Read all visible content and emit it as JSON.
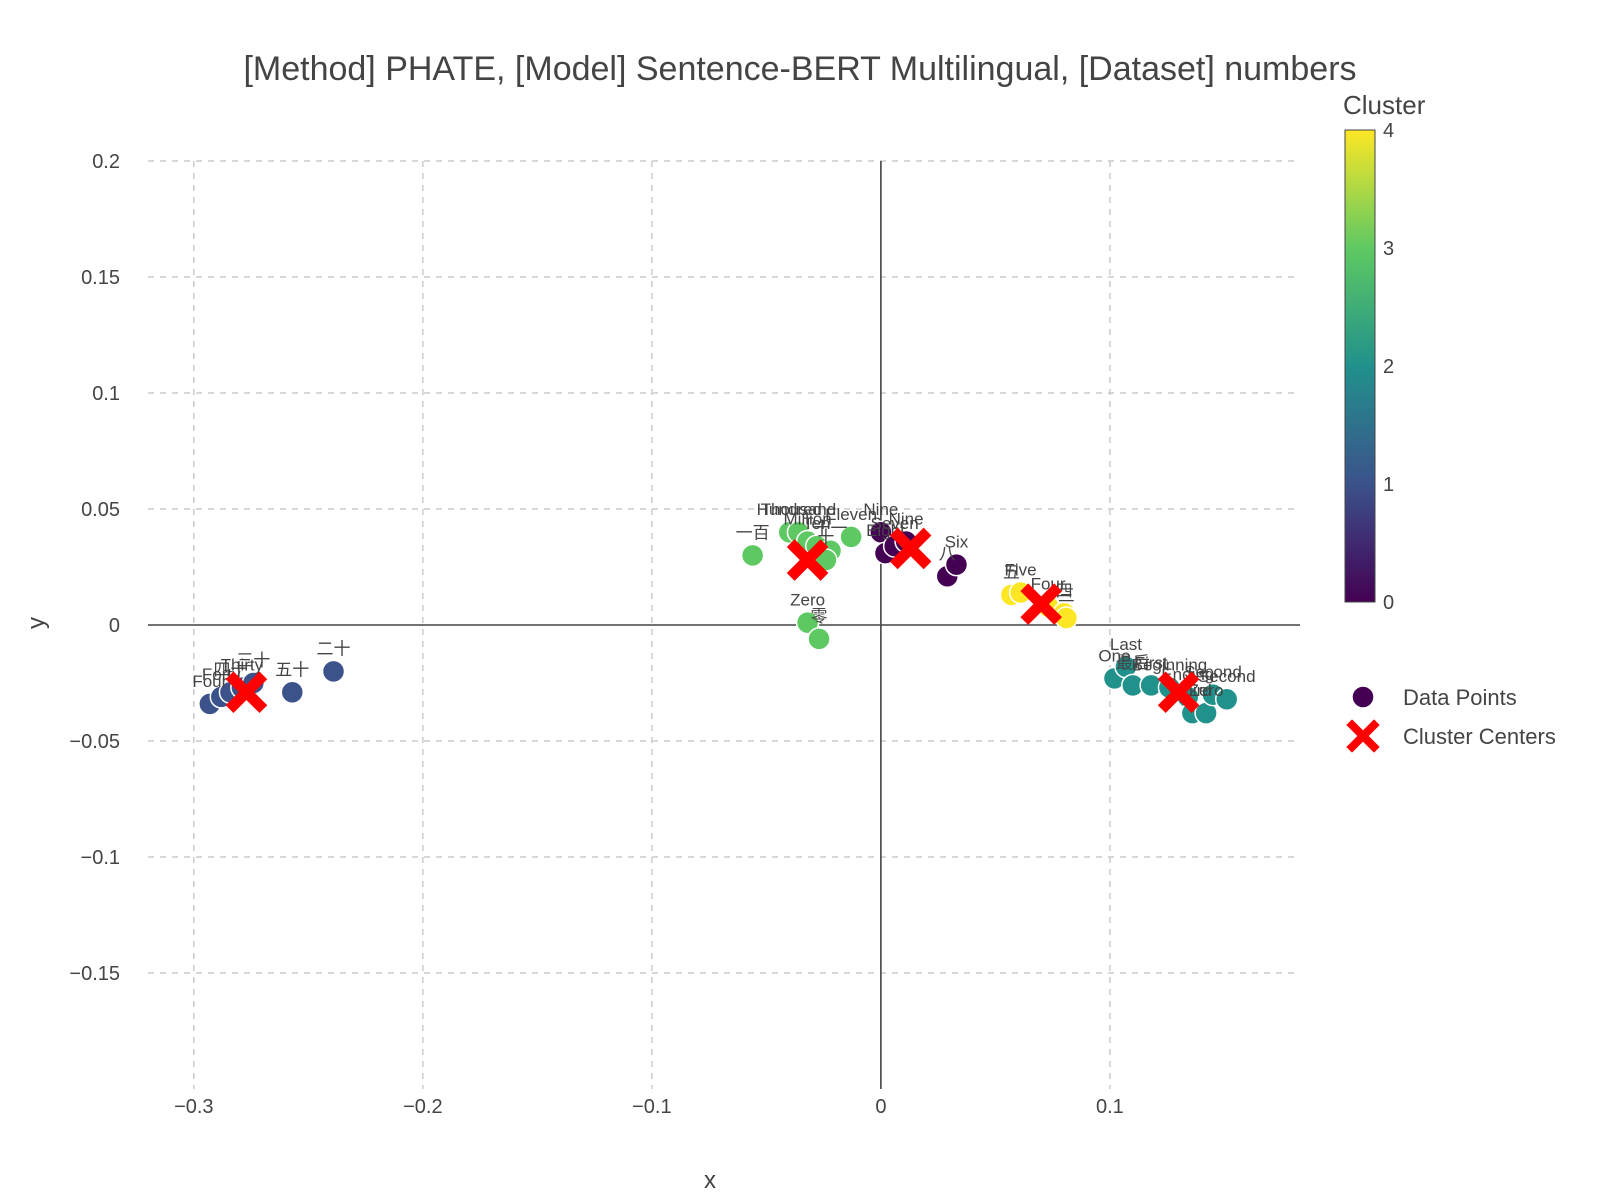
{
  "chart_data": {
    "type": "scatter",
    "title": "[Method] PHATE, [Model] Sentence-BERT Multilingual, [Dataset] numbers",
    "xlabel": "x",
    "ylabel": "y",
    "xlim": [
      -0.32,
      0.183
    ],
    "ylim": [
      -0.2,
      0.2
    ],
    "xticks": [
      -0.3,
      -0.2,
      -0.1,
      0,
      0.1
    ],
    "xtick_labels": [
      "−0.3",
      "−0.2",
      "−0.1",
      "0",
      "0.1"
    ],
    "yticks": [
      -0.15,
      -0.1,
      -0.05,
      0,
      0.05,
      0.1,
      0.15,
      0.2
    ],
    "ytick_labels": [
      "−0.15",
      "−0.1",
      "−0.05",
      "0",
      "0.05",
      "0.1",
      "0.15",
      "0.2"
    ],
    "grid": true,
    "legend": {
      "placement": "right",
      "items": [
        "Data Points",
        "Cluster Centers"
      ]
    },
    "colorbar": {
      "title": "Cluster",
      "min": 0,
      "max": 4,
      "ticks": [
        "0",
        "1",
        "2",
        "3",
        "4"
      ],
      "colorscale": "viridis"
    },
    "series": [
      {
        "name": "Data Points",
        "points": [
          {
            "x": -0.293,
            "y": -0.034,
            "cluster": 1,
            "label": "Four"
          },
          {
            "x": -0.288,
            "y": -0.031,
            "cluster": 1,
            "label": "Forty"
          },
          {
            "x": -0.284,
            "y": -0.029,
            "cluster": 1,
            "label": "四十"
          },
          {
            "x": -0.279,
            "y": -0.027,
            "cluster": 1,
            "label": "Thirty"
          },
          {
            "x": -0.274,
            "y": -0.025,
            "cluster": 1,
            "label": "三十"
          },
          {
            "x": -0.257,
            "y": -0.029,
            "cluster": 1,
            "label": "五十"
          },
          {
            "x": -0.239,
            "y": -0.02,
            "cluster": 1,
            "label": "二十"
          },
          {
            "x": -0.056,
            "y": 0.03,
            "cluster": 3,
            "label": "一百"
          },
          {
            "x": -0.04,
            "y": 0.04,
            "cluster": 3,
            "label": "Hundred"
          },
          {
            "x": -0.036,
            "y": 0.04,
            "cluster": 3,
            "label": "Thousand"
          },
          {
            "x": -0.032,
            "y": 0.036,
            "cluster": 3,
            "label": "Million"
          },
          {
            "x": -0.028,
            "y": 0.034,
            "cluster": 3,
            "label": "Ten"
          },
          {
            "x": -0.022,
            "y": 0.032,
            "cluster": 3,
            "label": "十一"
          },
          {
            "x": -0.024,
            "y": 0.028,
            "cluster": 3,
            "label": "十"
          },
          {
            "x": -0.013,
            "y": 0.038,
            "cluster": 3,
            "label": "Eleven"
          },
          {
            "x": -0.032,
            "y": 0.001,
            "cluster": 3,
            "label": "Zero"
          },
          {
            "x": -0.027,
            "y": -0.006,
            "cluster": 3,
            "label": "零"
          },
          {
            "x": 0.0,
            "y": 0.04,
            "cluster": 0,
            "label": "Nine"
          },
          {
            "x": 0.002,
            "y": 0.031,
            "cluster": 0,
            "label": "Eight"
          },
          {
            "x": 0.006,
            "y": 0.034,
            "cluster": 0,
            "label": "Seven"
          },
          {
            "x": 0.011,
            "y": 0.036,
            "cluster": 0,
            "label": "Nine"
          },
          {
            "x": 0.029,
            "y": 0.021,
            "cluster": 0,
            "label": "八"
          },
          {
            "x": 0.033,
            "y": 0.026,
            "cluster": 0,
            "label": "Six"
          },
          {
            "x": 0.057,
            "y": 0.013,
            "cluster": 4,
            "label": "五"
          },
          {
            "x": 0.061,
            "y": 0.014,
            "cluster": 4,
            "label": "Five"
          },
          {
            "x": 0.073,
            "y": 0.008,
            "cluster": 4,
            "label": "Four"
          },
          {
            "x": 0.08,
            "y": 0.005,
            "cluster": 4,
            "label": "四"
          },
          {
            "x": 0.081,
            "y": 0.003,
            "cluster": 4,
            "label": "三"
          },
          {
            "x": 0.102,
            "y": -0.023,
            "cluster": 2,
            "label": "One"
          },
          {
            "x": 0.107,
            "y": -0.018,
            "cluster": 2,
            "label": "Last"
          },
          {
            "x": 0.11,
            "y": -0.026,
            "cluster": 2,
            "label": "最后"
          },
          {
            "x": 0.118,
            "y": -0.026,
            "cluster": 2,
            "label": "First"
          },
          {
            "x": 0.126,
            "y": -0.027,
            "cluster": 2,
            "label": "Beginning"
          },
          {
            "x": 0.134,
            "y": -0.031,
            "cluster": 2,
            "label": "Ending"
          },
          {
            "x": 0.136,
            "y": -0.038,
            "cluster": 2,
            "label": "Third"
          },
          {
            "x": 0.142,
            "y": -0.038,
            "cluster": 2,
            "label": "Zero"
          },
          {
            "x": 0.145,
            "y": -0.03,
            "cluster": 2,
            "label": "Second"
          },
          {
            "x": 0.151,
            "y": -0.032,
            "cluster": 2,
            "label": "Second"
          }
        ]
      },
      {
        "name": "Cluster Centers",
        "points": [
          {
            "x": -0.277,
            "y": -0.029
          },
          {
            "x": -0.032,
            "y": 0.028
          },
          {
            "x": 0.013,
            "y": 0.033
          },
          {
            "x": 0.07,
            "y": 0.009
          },
          {
            "x": 0.13,
            "y": -0.029
          }
        ]
      }
    ]
  }
}
